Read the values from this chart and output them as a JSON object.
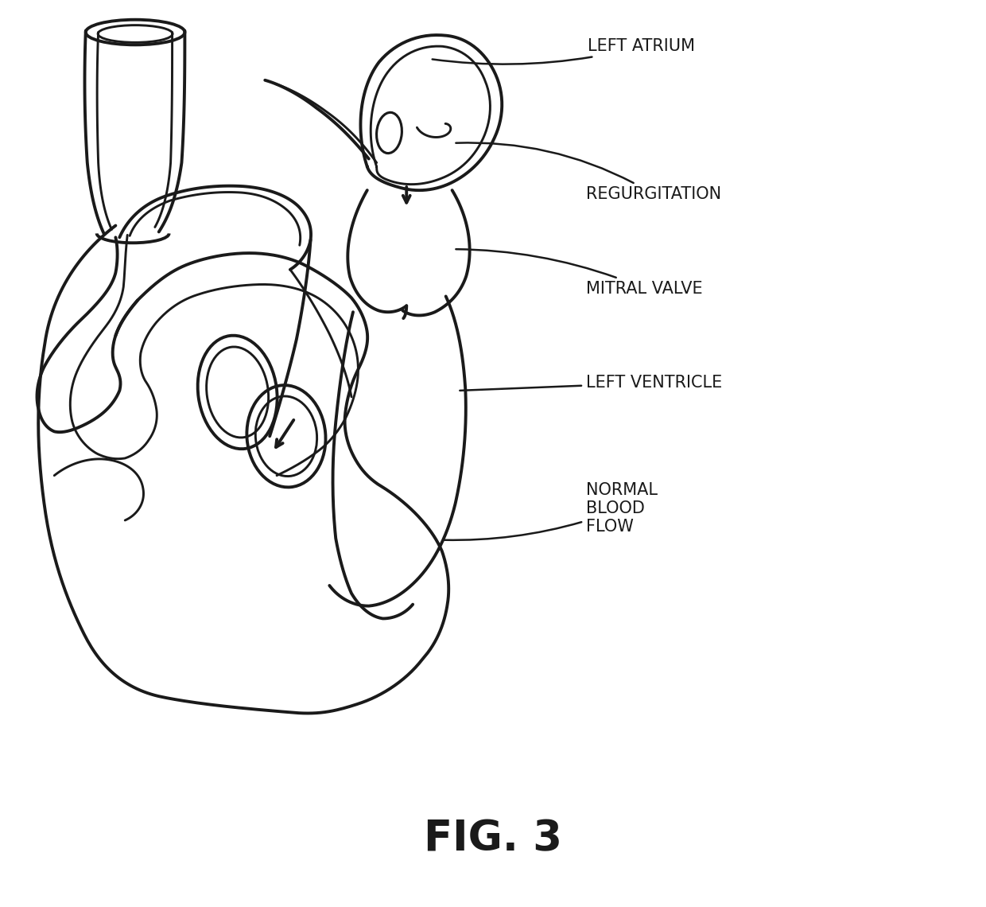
{
  "background_color": "#ffffff",
  "line_color": "#1a1a1a",
  "line_width": 2.8,
  "fig_label": "FIG. 3",
  "fig_label_fontsize": 38,
  "labels": {
    "left_atrium": "LEFT ATRIUM",
    "regurgitation": "REGURGITATION",
    "mitral_valve": "MITRAL VALVE",
    "left_ventricle": "LEFT VENTRICLE",
    "normal_blood_flow": "NORMAL\nBLOOD\nFLOW"
  },
  "label_fontsize": 14,
  "annotation_color": "#1a1a1a"
}
